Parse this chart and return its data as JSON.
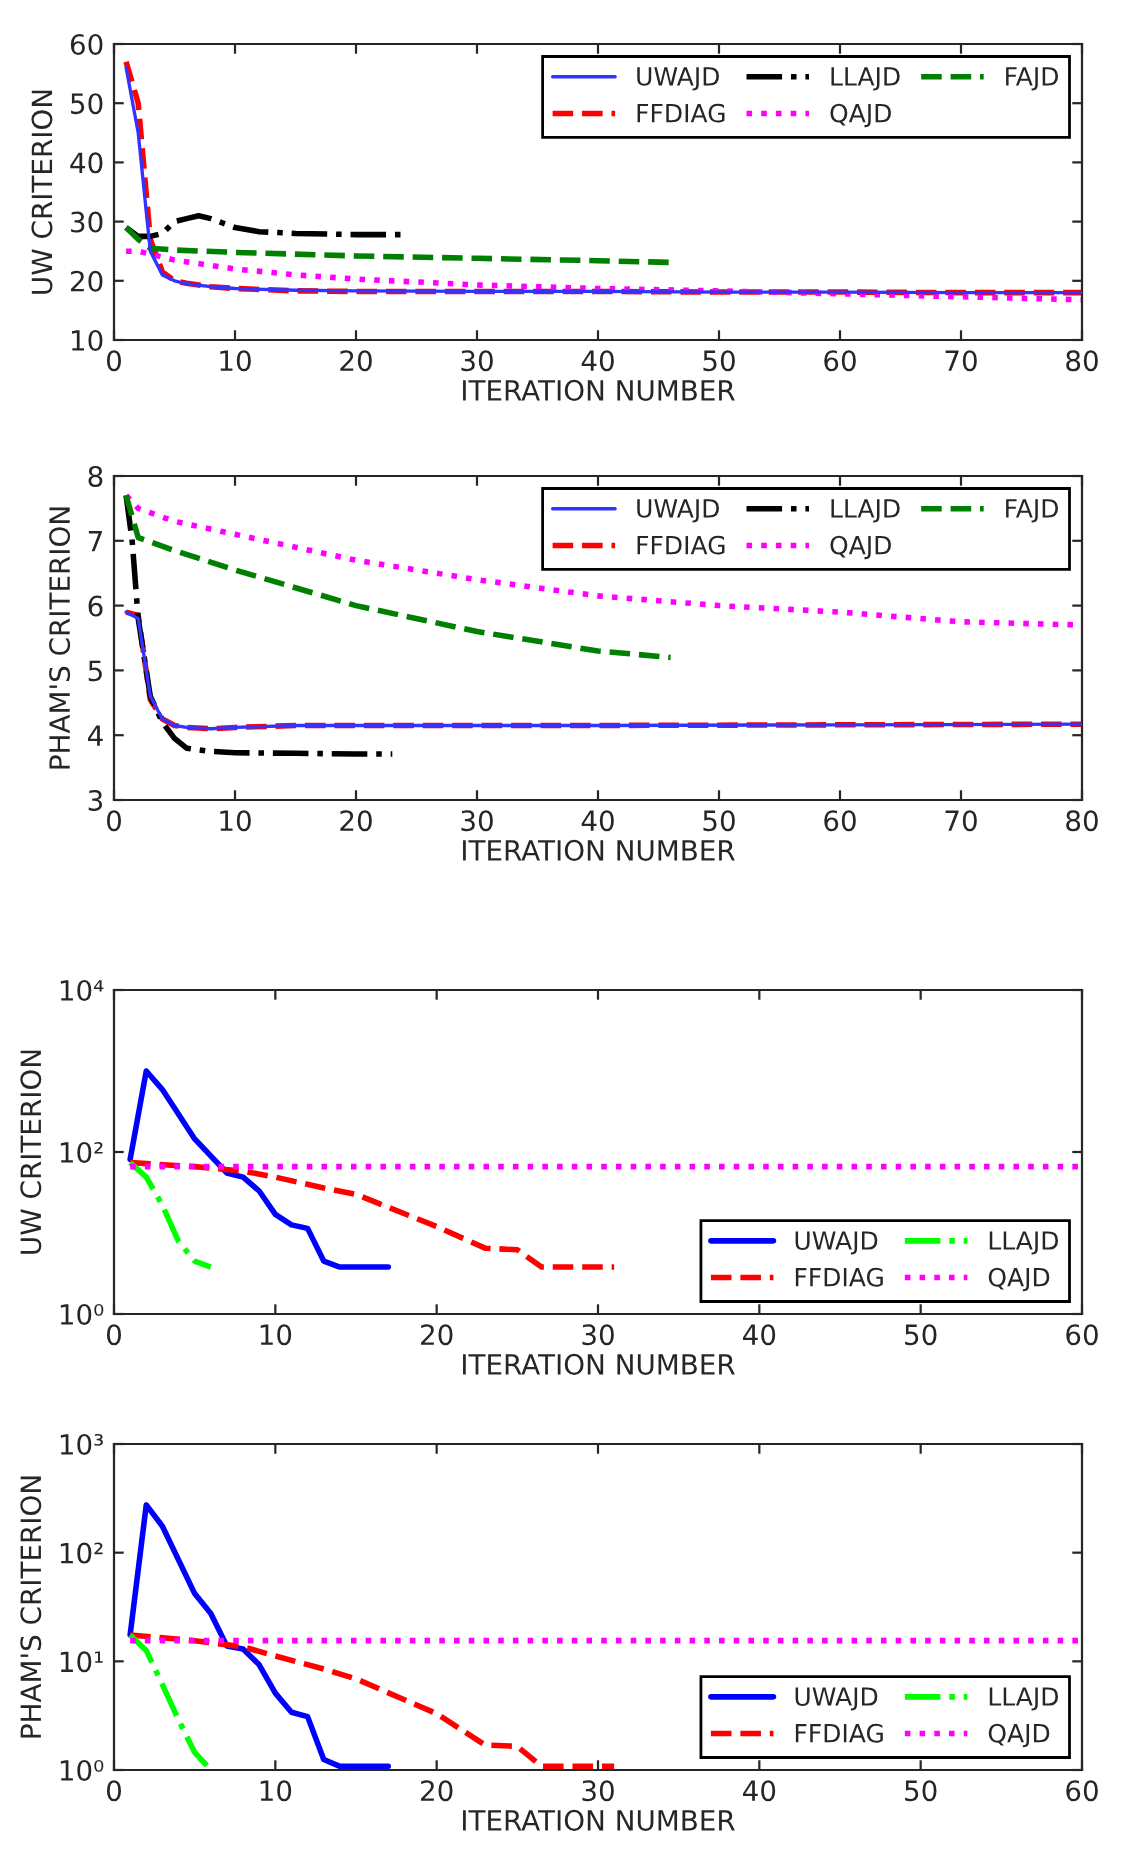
{
  "chart_data": [
    {
      "type": "line",
      "xlabel": "ITERATION NUMBER",
      "ylabel": "UW CRITERION",
      "xlim": [
        0,
        80
      ],
      "ylim": [
        10,
        60
      ],
      "xticks": [
        0,
        10,
        20,
        30,
        40,
        50,
        60,
        70,
        80
      ],
      "yticks": [
        10,
        20,
        30,
        40,
        50,
        60
      ],
      "legend": "top right",
      "grid": false,
      "series": [
        {
          "name": "UWAJD",
          "color": "#3333ff",
          "line_style": "solid",
          "x": [
            1,
            2,
            3,
            4,
            5,
            6,
            8,
            10,
            15,
            20,
            30,
            40,
            50,
            60,
            70,
            80
          ],
          "values": [
            56,
            45,
            25,
            21,
            20,
            19.5,
            19,
            18.7,
            18.4,
            18.3,
            18.2,
            18.2,
            18.1,
            18.1,
            18,
            18
          ]
        },
        {
          "name": "FFDIAG",
          "color": "#ff0000",
          "line_style": "dashed",
          "x": [
            1,
            2,
            3,
            4,
            5,
            6,
            8,
            10,
            15,
            20,
            30,
            40,
            50,
            60,
            70,
            80
          ],
          "values": [
            57,
            50,
            27,
            21.5,
            20,
            19.6,
            19,
            18.7,
            18.3,
            18.2,
            18.2,
            18.2,
            18.1,
            18.1,
            18,
            18
          ]
        },
        {
          "name": "LLAJD",
          "color": "#000000",
          "line_style": "dashdot",
          "x": [
            1,
            2,
            3,
            4,
            5,
            6,
            7,
            8,
            10,
            12,
            15,
            20,
            24
          ],
          "values": [
            29,
            27.5,
            27.5,
            28,
            30,
            30.5,
            31,
            30.5,
            29,
            28.3,
            28,
            27.8,
            27.8
          ]
        },
        {
          "name": "QAJD",
          "color": "#ff00ff",
          "line_style": "dotted",
          "x": [
            1,
            2,
            3,
            5,
            10,
            15,
            20,
            30,
            40,
            50,
            60,
            70,
            80
          ],
          "values": [
            25,
            25,
            24.5,
            23.5,
            22,
            21,
            20.3,
            19.3,
            18.7,
            18.3,
            17.8,
            17.3,
            16.8
          ]
        },
        {
          "name": "FAJD",
          "color": "#008000",
          "line_style": "dashed",
          "x": [
            1,
            2,
            3,
            5,
            10,
            20,
            30,
            40,
            46
          ],
          "values": [
            29,
            27,
            25.5,
            25.2,
            24.8,
            24.2,
            23.8,
            23.4,
            23.1
          ]
        }
      ]
    },
    {
      "type": "line",
      "xlabel": "ITERATION NUMBER",
      "ylabel": "PHAM'S CRITERION",
      "xlim": [
        0,
        80
      ],
      "ylim": [
        3,
        8
      ],
      "xticks": [
        0,
        10,
        20,
        30,
        40,
        50,
        60,
        70,
        80
      ],
      "yticks": [
        3,
        4,
        5,
        6,
        7,
        8
      ],
      "legend": "top right",
      "grid": false,
      "series": [
        {
          "name": "UWAJD",
          "color": "#3333ff",
          "line_style": "solid",
          "x": [
            1,
            2,
            3,
            4,
            5,
            6,
            8,
            10,
            15,
            20,
            40,
            60,
            80
          ],
          "values": [
            5.9,
            5.8,
            4.6,
            4.25,
            4.15,
            4.12,
            4.1,
            4.12,
            4.15,
            4.15,
            4.15,
            4.16,
            4.17
          ]
        },
        {
          "name": "FFDIAG",
          "color": "#ff0000",
          "line_style": "dashed",
          "x": [
            1,
            2,
            3,
            4,
            5,
            6,
            8,
            10,
            15,
            20,
            40,
            60,
            80
          ],
          "values": [
            5.9,
            5.85,
            4.55,
            4.25,
            4.15,
            4.12,
            4.1,
            4.12,
            4.15,
            4.15,
            4.15,
            4.16,
            4.17
          ]
        },
        {
          "name": "LLAJD",
          "color": "#000000",
          "line_style": "dashdot",
          "x": [
            1,
            1.5,
            2,
            3,
            4,
            5,
            6,
            8,
            10,
            15,
            20,
            23
          ],
          "values": [
            7.7,
            7.0,
            5.8,
            4.6,
            4.2,
            3.95,
            3.8,
            3.75,
            3.73,
            3.72,
            3.71,
            3.71
          ]
        },
        {
          "name": "QAJD",
          "color": "#ff00ff",
          "line_style": "dotted",
          "x": [
            1,
            2,
            5,
            10,
            20,
            30,
            40,
            50,
            60,
            70,
            80
          ],
          "values": [
            7.7,
            7.5,
            7.3,
            7.1,
            6.7,
            6.4,
            6.15,
            6.0,
            5.9,
            5.75,
            5.7
          ]
        },
        {
          "name": "FAJD",
          "color": "#008000",
          "line_style": "dashed",
          "x": [
            1,
            2,
            5,
            10,
            20,
            30,
            40,
            46
          ],
          "values": [
            7.7,
            7.05,
            6.85,
            6.55,
            6.0,
            5.6,
            5.3,
            5.2
          ]
        }
      ]
    },
    {
      "type": "line",
      "xlabel": "ITERATION NUMBER",
      "ylabel": "UW CRITERION",
      "log": true,
      "xlim": [
        0,
        60
      ],
      "ylim": [
        1,
        10000
      ],
      "xticks": [
        0,
        10,
        20,
        30,
        40,
        50,
        60
      ],
      "yticks": [
        {
          "value": 1,
          "label": "10⁰"
        },
        {
          "value": 100,
          "label": "10²"
        },
        {
          "value": 10000,
          "label": "10⁴"
        }
      ],
      "legend": "bottom right",
      "grid": false,
      "series": [
        {
          "name": "UWAJD",
          "color": "#0000ff",
          "line_style": "solid",
          "x": [
            1,
            2,
            3,
            5,
            7,
            8,
            9,
            10,
            11,
            12,
            13,
            14,
            17
          ],
          "values": [
            81,
            1000,
            590,
            145,
            55,
            49,
            33,
            17,
            12.6,
            11.4,
            4.5,
            3.8,
            3.8
          ]
        },
        {
          "name": "FFDIAG",
          "color": "#ff0000",
          "line_style": "dashed",
          "x": [
            1,
            5,
            8,
            10,
            13,
            15,
            20,
            23,
            25,
            26.5,
            31
          ],
          "values": [
            74,
            66,
            58,
            49,
            36,
            30,
            12,
            6.5,
            6.2,
            3.8,
            3.8
          ]
        },
        {
          "name": "LLAJD",
          "color": "#00ff00",
          "line_style": "dashdot",
          "x": [
            1,
            2,
            3,
            4,
            5,
            6
          ],
          "values": [
            74,
            49,
            22,
            7.9,
            4.5,
            3.8
          ]
        },
        {
          "name": "QAJD",
          "color": "#ff00ff",
          "line_style": "dotted",
          "x": [
            1,
            10,
            20,
            30,
            40,
            50,
            60
          ],
          "values": [
            66,
            66,
            66,
            66,
            66,
            66,
            66
          ]
        }
      ]
    },
    {
      "type": "line",
      "xlabel": "ITERATION NUMBER",
      "ylabel": "PHAM'S CRITERION",
      "log": true,
      "xlim": [
        0,
        60
      ],
      "ylim": [
        1,
        1000
      ],
      "xticks": [
        0,
        10,
        20,
        30,
        40,
        50,
        60
      ],
      "yticks": [
        {
          "value": 1,
          "label": "10⁰"
        },
        {
          "value": 10,
          "label": "10¹"
        },
        {
          "value": 100,
          "label": "10²"
        },
        {
          "value": 1000,
          "label": "10³"
        }
      ],
      "legend": "bottom right",
      "grid": false,
      "series": [
        {
          "name": "UWAJD",
          "color": "#0000ff",
          "line_style": "solid",
          "x": [
            1,
            2,
            3,
            5,
            6,
            7,
            8,
            9,
            10,
            11,
            12,
            13,
            14,
            17
          ],
          "values": [
            17.5,
            275,
            175,
            42,
            27.5,
            13.8,
            13,
            9.3,
            5.1,
            3.4,
            3.1,
            1.25,
            1.08,
            1.08
          ]
        },
        {
          "name": "FFDIAG",
          "color": "#ff0000",
          "line_style": "dashed",
          "x": [
            1,
            5,
            8,
            10,
            13,
            15,
            20,
            23,
            25,
            26.5,
            31
          ],
          "values": [
            17.5,
            15.5,
            13.6,
            11.2,
            8.5,
            6.9,
            3.3,
            1.7,
            1.65,
            1.08,
            1.08
          ]
        },
        {
          "name": "LLAJD",
          "color": "#00ff00",
          "line_style": "dashdot",
          "x": [
            1,
            2,
            3,
            4,
            5,
            6
          ],
          "values": [
            17.5,
            12.6,
            6.1,
            2.9,
            1.45,
            1.0
          ]
        },
        {
          "name": "QAJD",
          "color": "#ff00ff",
          "line_style": "dotted",
          "x": [
            1,
            10,
            20,
            30,
            40,
            50,
            60
          ],
          "values": [
            15.5,
            15.5,
            15.5,
            15.5,
            15.5,
            15.5,
            15.5
          ]
        }
      ]
    }
  ]
}
